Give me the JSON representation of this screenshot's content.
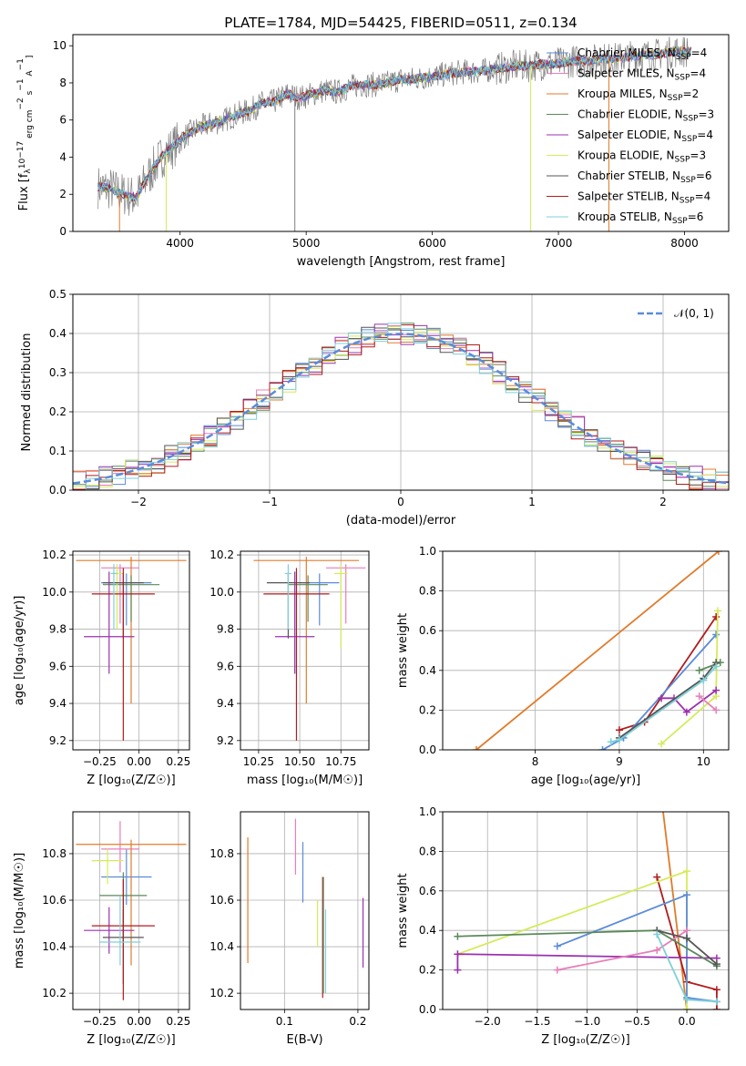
{
  "title": "PLATE=1784, MJD=54425, FIBERID=0511, z=0.134",
  "colors": {
    "chabrier_miles": "#5b8bd9",
    "salpeter_miles": "#e87fb8",
    "kroupa_miles": "#e07b2a",
    "chabrier_elodie": "#5a8a5a",
    "salpeter_elodie": "#9b30b0",
    "kroupa_elodie": "#d6ea5a",
    "chabrier_stelib": "#555555",
    "salpeter_stelib": "#b01c1c",
    "kroupa_stelib": "#7fd0d8",
    "data": "#808080",
    "gaussian": "#5b8bd9",
    "grid": "#b0b0b0"
  },
  "chart_data": [
    {
      "panel": "spectrum",
      "type": "line",
      "title": "PLATE=1784, MJD=54425, FIBERID=0511, z=0.134",
      "xlabel": "wavelength [Angstrom, rest frame]",
      "ylabel_parts": [
        "Flux [f",
        "λ",
        "10",
        "−17",
        " erg cm",
        "−2",
        " s",
        "−1",
        " A",
        "−1",
        "]"
      ],
      "xlim": [
        3150,
        8350
      ],
      "ylim": [
        0,
        10.6
      ],
      "xticks": [
        "4000",
        "5000",
        "6000",
        "7000",
        "8000"
      ],
      "yticks": [
        "0",
        "2",
        "4",
        "6",
        "8",
        "10"
      ],
      "legend_position": "top-right",
      "legend": [
        {
          "base": "Chabrier MILES, N",
          "sub": "SSP",
          "tail": "=4",
          "color_key": "chabrier_miles"
        },
        {
          "base": "Salpeter MILES, N",
          "sub": "SSP",
          "tail": "=4",
          "color_key": "salpeter_miles"
        },
        {
          "base": "Kroupa MILES, N",
          "sub": "SSP",
          "tail": "=2",
          "color_key": "kroupa_miles"
        },
        {
          "base": "Chabrier ELODIE, N",
          "sub": "SSP",
          "tail": "=3",
          "color_key": "chabrier_elodie"
        },
        {
          "base": "Salpeter ELODIE, N",
          "sub": "SSP",
          "tail": "=4",
          "color_key": "salpeter_elodie"
        },
        {
          "base": "Kroupa ELODIE, N",
          "sub": "SSP",
          "tail": "=3",
          "color_key": "kroupa_elodie"
        },
        {
          "base": "Chabrier STELIB, N",
          "sub": "SSP",
          "tail": "=6",
          "color_key": "chabrier_stelib"
        },
        {
          "base": "Salpeter STELIB, N",
          "sub": "SSP",
          "tail": "=4",
          "color_key": "salpeter_stelib"
        },
        {
          "base": "Kroupa STELIB, N",
          "sub": "SSP",
          "tail": "=6",
          "color_key": "kroupa_stelib"
        }
      ],
      "data_x": [
        3350,
        3450,
        3550,
        3650,
        3750,
        3850,
        3950,
        4050,
        4150,
        4250,
        4350,
        4450,
        4550,
        4650,
        4750,
        4850,
        4950,
        5050,
        5150,
        5250,
        5350,
        5450,
        5550,
        5650,
        5750,
        5850,
        5950,
        6050,
        6150,
        6250,
        6350,
        6450,
        6550,
        6650,
        6750,
        6850,
        6950,
        7050,
        7150,
        7250,
        7350,
        7450,
        7550,
        7650,
        7750,
        7850,
        7950,
        8050
      ],
      "data_y": [
        2.4,
        2.3,
        2.0,
        1.8,
        3.0,
        4.0,
        4.6,
        5.2,
        5.6,
        5.8,
        6.0,
        6.3,
        6.5,
        6.9,
        7.0,
        7.4,
        7.2,
        7.4,
        7.6,
        7.5,
        7.8,
        7.9,
        7.9,
        8.0,
        8.2,
        8.2,
        8.3,
        8.4,
        8.5,
        8.6,
        8.6,
        8.7,
        8.8,
        8.9,
        8.9,
        9.0,
        9.0,
        9.1,
        9.2,
        9.2,
        9.3,
        9.3,
        9.4,
        9.5,
        9.5,
        9.6,
        9.7,
        9.7
      ]
    },
    {
      "panel": "residual_histogram",
      "type": "line",
      "xlabel": "(data-model)/error",
      "ylabel": "Normed distribution",
      "xlim": [
        -2.5,
        2.5
      ],
      "ylim": [
        0,
        0.5
      ],
      "xticks": [
        "−2",
        "−1",
        "0",
        "1",
        "2"
      ],
      "yticks": [
        "0.0",
        "0.1",
        "0.2",
        "0.3",
        "0.4",
        "0.5"
      ],
      "legend_position": "top-right",
      "legend": [
        {
          "label": "𝒩(0, 1)",
          "color_key": "gaussian"
        }
      ],
      "bin_width": 0.1
    },
    {
      "panel": "age_vs_Z",
      "type": "scatter",
      "xlabel": "Z [log₁₀(Z/Z☉)]",
      "ylabel": "age  [log₁₀(age/yr)]",
      "xlim": [
        -0.42,
        0.32
      ],
      "ylim": [
        9.15,
        10.22
      ],
      "xticks": [
        "−0.25",
        "0.00",
        "0.25"
      ],
      "yticks": [
        "9.2",
        "9.4",
        "9.6",
        "9.8",
        "10.0",
        "10.2"
      ],
      "points": [
        {
          "model": "chabrier_miles",
          "x": -0.08,
          "xerr": 0.16,
          "y": 10.05,
          "yerr": [
            0.23,
            0.05
          ]
        },
        {
          "model": "salpeter_miles",
          "x": -0.12,
          "xerr": 0.12,
          "y": 10.13,
          "yerr": [
            0.3,
            0.02
          ]
        },
        {
          "model": "kroupa_miles",
          "x": -0.05,
          "xerr": 0.35,
          "y": 10.17,
          "yerr": [
            0.77,
            0.02
          ]
        },
        {
          "model": "chabrier_elodie",
          "x": -0.05,
          "xerr": 0.18,
          "y": 10.04,
          "yerr": [
            0.2,
            0.05
          ]
        },
        {
          "model": "salpeter_elodie",
          "x": -0.19,
          "xerr": 0.16,
          "y": 9.76,
          "yerr": [
            0.2,
            0.35
          ]
        },
        {
          "model": "kroupa_elodie",
          "x": -0.14,
          "xerr": 0.04,
          "y": 10.1,
          "yerr": [
            0.3,
            0.05
          ]
        },
        {
          "model": "chabrier_stelib",
          "x": -0.1,
          "xerr": 0.13,
          "y": 10.05,
          "yerr": [
            0.3,
            0.05
          ]
        },
        {
          "model": "salpeter_stelib",
          "x": -0.1,
          "xerr": 0.2,
          "y": 9.99,
          "yerr": [
            0.79,
            0.14
          ]
        },
        {
          "model": "kroupa_stelib",
          "x": -0.16,
          "xerr": 0.02,
          "y": 10.1,
          "yerr": [
            0.3,
            0.05
          ]
        }
      ]
    },
    {
      "panel": "age_vs_mass",
      "type": "scatter",
      "xlabel": "mass [log₁₀(M/M☉)]",
      "ylabel": "",
      "xlim": [
        10.14,
        10.92
      ],
      "ylim": [
        9.15,
        10.22
      ],
      "xticks": [
        "10.25",
        "10.50",
        "10.75"
      ],
      "yticks": [
        "9.2",
        "9.4",
        "9.6",
        "9.8",
        "10.0",
        "10.2"
      ],
      "points": [
        {
          "model": "chabrier_miles",
          "x": 10.62,
          "xerr": 0.12,
          "y": 10.05,
          "yerr": [
            0.23,
            0.05
          ]
        },
        {
          "model": "salpeter_miles",
          "x": 10.78,
          "xerr": 0.12,
          "y": 10.13,
          "yerr": [
            0.3,
            0.02
          ]
        },
        {
          "model": "kroupa_miles",
          "x": 10.54,
          "xerr": 0.32,
          "y": 10.17,
          "yerr": [
            0.77,
            0.02
          ]
        },
        {
          "model": "chabrier_elodie",
          "x": 10.55,
          "xerr": 0.12,
          "y": 10.04,
          "yerr": [
            0.2,
            0.05
          ]
        },
        {
          "model": "salpeter_elodie",
          "x": 10.47,
          "xerr": 0.12,
          "y": 9.76,
          "yerr": [
            0.2,
            0.35
          ]
        },
        {
          "model": "kroupa_elodie",
          "x": 10.75,
          "xerr": 0.04,
          "y": 10.1,
          "yerr": [
            0.4,
            0.05
          ]
        },
        {
          "model": "chabrier_stelib",
          "x": 10.43,
          "xerr": 0.13,
          "y": 10.05,
          "yerr": [
            0.3,
            0.05
          ]
        },
        {
          "model": "salpeter_stelib",
          "x": 10.48,
          "xerr": 0.2,
          "y": 9.99,
          "yerr": [
            0.79,
            0.14
          ]
        },
        {
          "model": "kroupa_stelib",
          "x": 10.43,
          "xerr": 0.02,
          "y": 10.1,
          "yerr": [
            0.3,
            0.05
          ]
        }
      ]
    },
    {
      "panel": "mass_weight_vs_age",
      "type": "line",
      "xlabel": "age  [log₁₀(age/yr)]",
      "ylabel": "mass weight",
      "xlim": [
        6.9,
        10.3
      ],
      "ylim": [
        0,
        1
      ],
      "xticks": [
        "8",
        "9",
        "10"
      ],
      "yticks": [
        "0.0",
        "0.2",
        "0.4",
        "0.6",
        "0.8",
        "1.0"
      ],
      "series": [
        {
          "model": "kroupa_miles",
          "points": [
            [
              7.3,
              0.0
            ],
            [
              10.18,
              1.0
            ]
          ]
        },
        {
          "model": "salpeter_stelib",
          "points": [
            [
              9.0,
              0.1
            ],
            [
              9.3,
              0.14
            ],
            [
              10.15,
              0.67
            ]
          ]
        },
        {
          "model": "chabrier_miles",
          "points": [
            [
              8.8,
              0.0
            ],
            [
              9.05,
              0.06
            ],
            [
              10.15,
              0.58
            ]
          ]
        },
        {
          "model": "kroupa_elodie",
          "points": [
            [
              9.5,
              0.03
            ],
            [
              10.15,
              0.27
            ],
            [
              10.17,
              0.7
            ]
          ]
        },
        {
          "model": "salpeter_elodie",
          "points": [
            [
              9.5,
              0.26
            ],
            [
              9.65,
              0.26
            ],
            [
              9.8,
              0.19
            ],
            [
              10.15,
              0.3
            ]
          ]
        },
        {
          "model": "salpeter_miles",
          "points": [
            [
              9.95,
              0.27
            ],
            [
              10.15,
              0.2
            ]
          ]
        },
        {
          "model": "chabrier_elodie",
          "points": [
            [
              9.95,
              0.4
            ],
            [
              10.2,
              0.44
            ]
          ]
        },
        {
          "model": "chabrier_stelib",
          "points": [
            [
              9.0,
              0.06
            ],
            [
              10.0,
              0.36
            ],
            [
              10.15,
              0.44
            ]
          ]
        },
        {
          "model": "kroupa_stelib",
          "points": [
            [
              8.9,
              0.04
            ],
            [
              9.0,
              0.05
            ],
            [
              10.0,
              0.35
            ],
            [
              10.15,
              0.42
            ]
          ]
        }
      ]
    },
    {
      "panel": "mass_vs_Z",
      "type": "scatter",
      "xlabel": "Z [log₁₀(Z/Z☉)]",
      "ylabel": "mass [log₁₀(M/M☉)]",
      "xlim": [
        -0.42,
        0.32
      ],
      "ylim": [
        10.13,
        10.98
      ],
      "xticks": [
        "−0.25",
        "0.00",
        "0.25"
      ],
      "yticks": [
        "10.2",
        "10.4",
        "10.6",
        "10.8"
      ],
      "points": [
        {
          "model": "chabrier_miles",
          "x": -0.08,
          "xerr": 0.16,
          "y": 10.7,
          "yerr": [
            0.12,
            0.12
          ]
        },
        {
          "model": "salpeter_miles",
          "x": -0.12,
          "xerr": 0.12,
          "y": 10.82,
          "yerr": [
            0.1,
            0.12
          ]
        },
        {
          "model": "kroupa_miles",
          "x": -0.05,
          "xerr": 0.35,
          "y": 10.84,
          "yerr": [
            0.52,
            0.02
          ]
        },
        {
          "model": "chabrier_elodie",
          "x": -0.1,
          "xerr": 0.15,
          "y": 10.62,
          "yerr": [
            0.2,
            0.1
          ]
        },
        {
          "model": "salpeter_elodie",
          "x": -0.19,
          "xerr": 0.16,
          "y": 10.47,
          "yerr": [
            0.1,
            0.1
          ]
        },
        {
          "model": "kroupa_elodie",
          "x": -0.2,
          "xerr": 0.1,
          "y": 10.77,
          "yerr": [
            0.1,
            0.05
          ]
        },
        {
          "model": "chabrier_stelib",
          "x": -0.1,
          "xerr": 0.13,
          "y": 10.44,
          "yerr": [
            0.2,
            0.12
          ]
        },
        {
          "model": "salpeter_stelib",
          "x": -0.1,
          "xerr": 0.2,
          "y": 10.49,
          "yerr": [
            0.32,
            0.2
          ]
        },
        {
          "model": "kroupa_stelib",
          "x": -0.12,
          "xerr": 0.13,
          "y": 10.42,
          "yerr": [
            0.1,
            0.2
          ]
        }
      ]
    },
    {
      "panel": "mass_vs_EBV",
      "type": "scatter",
      "xlabel": "E(B-V)",
      "ylabel": "",
      "xlim": [
        0.04,
        0.215
      ],
      "ylim": [
        10.13,
        10.98
      ],
      "xticks": [
        "0.1",
        "0.2"
      ],
      "yticks": [
        "10.2",
        "10.4",
        "10.6",
        "10.8"
      ],
      "points": [
        {
          "model": "kroupa_miles",
          "x": 0.05,
          "y": 10.6,
          "yerr": [
            0.27,
            0.27
          ]
        },
        {
          "model": "salpeter_miles",
          "x": 0.115,
          "y": 10.83,
          "yerr": [
            0.12,
            0.12
          ]
        },
        {
          "model": "chabrier_miles",
          "x": 0.125,
          "y": 10.72,
          "yerr": [
            0.13,
            0.13
          ]
        },
        {
          "model": "kroupa_elodie",
          "x": 0.145,
          "y": 10.5,
          "yerr": [
            0.1,
            0.1
          ]
        },
        {
          "model": "salpeter_stelib",
          "x": 0.152,
          "y": 10.44,
          "yerr": [
            0.26,
            0.26
          ]
        },
        {
          "model": "chabrier_elodie",
          "x": 0.153,
          "y": 10.45,
          "yerr": [
            0.25,
            0.25
          ]
        },
        {
          "model": "kroupa_stelib",
          "x": 0.156,
          "y": 10.38,
          "yerr": [
            0.18,
            0.18
          ]
        },
        {
          "model": "salpeter_elodie",
          "x": 0.207,
          "y": 10.46,
          "yerr": [
            0.15,
            0.15
          ]
        }
      ]
    },
    {
      "panel": "mass_weight_vs_Z",
      "type": "line",
      "xlabel": "Z [log₁₀(Z/Z☉)]",
      "ylabel": "mass weight",
      "xlim": [
        -2.45,
        0.42
      ],
      "ylim": [
        0,
        1
      ],
      "xticks": [
        "−2.0",
        "−1.5",
        "−1.0",
        "−0.5",
        "0.0"
      ],
      "yticks": [
        "0.0",
        "0.2",
        "0.4",
        "0.6",
        "0.8",
        "1.0"
      ],
      "series": [
        {
          "model": "kroupa_miles",
          "points": [
            [
              -0.25,
              1.05
            ],
            [
              0.0,
              0.0
            ]
          ]
        },
        {
          "model": "salpeter_stelib",
          "points": [
            [
              -0.3,
              0.67
            ],
            [
              0.0,
              0.14
            ],
            [
              0.3,
              0.1
            ],
            [
              0.3,
              0.0
            ]
          ]
        },
        {
          "model": "kroupa_elodie",
          "points": [
            [
              -2.3,
              0.28
            ],
            [
              0.0,
              0.7
            ],
            [
              0.0,
              0.0
            ]
          ]
        },
        {
          "model": "chabrier_miles",
          "points": [
            [
              -1.3,
              0.32
            ],
            [
              0.0,
              0.58
            ],
            [
              0.0,
              0.06
            ],
            [
              0.3,
              0.04
            ]
          ]
        },
        {
          "model": "salpeter_elodie",
          "points": [
            [
              -2.3,
              0.2
            ],
            [
              -2.3,
              0.28
            ],
            [
              0.3,
              0.26
            ]
          ]
        },
        {
          "model": "salpeter_miles",
          "points": [
            [
              -1.3,
              0.2
            ],
            [
              -0.3,
              0.3
            ],
            [
              0.0,
              0.4
            ]
          ]
        },
        {
          "model": "chabrier_elodie",
          "points": [
            [
              -2.3,
              0.37
            ],
            [
              -0.3,
              0.4
            ],
            [
              0.3,
              0.22
            ]
          ]
        },
        {
          "model": "chabrier_stelib",
          "points": [
            [
              -0.3,
              0.4
            ],
            [
              0.0,
              0.36
            ],
            [
              0.3,
              0.23
            ]
          ]
        },
        {
          "model": "kroupa_stelib",
          "points": [
            [
              -0.3,
              0.38
            ],
            [
              0.0,
              0.05
            ],
            [
              0.3,
              0.04
            ]
          ]
        }
      ]
    }
  ]
}
